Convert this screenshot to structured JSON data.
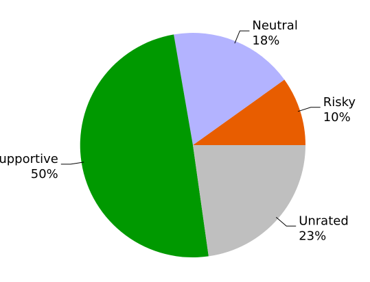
{
  "chart_data": {
    "type": "pie",
    "slices": [
      {
        "label": "Risky",
        "value": 10,
        "pct_text": "10%",
        "color": "#e85d00"
      },
      {
        "label": "Neutral",
        "value": 18,
        "pct_text": "18%",
        "color": "#b3b3ff"
      },
      {
        "label": "Supportive",
        "value": 50,
        "pct_text": "50%",
        "color": "#009900"
      },
      {
        "label": "Unrated",
        "value": 23,
        "pct_text": "23%",
        "color": "#bfbfbf"
      }
    ],
    "start_angle_deg": 0,
    "direction": "counterclockwise",
    "labels_outside": true
  }
}
